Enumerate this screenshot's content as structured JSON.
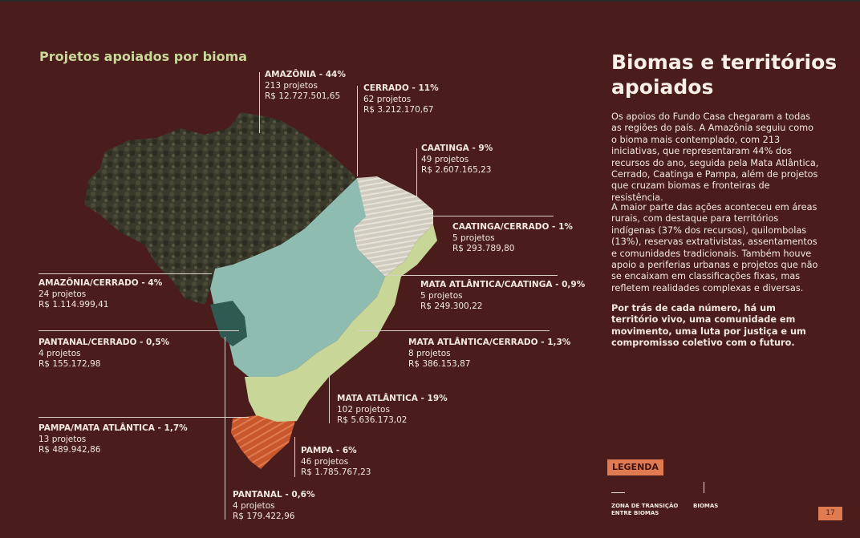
{
  "section_title": "Projetos apoiados por bioma",
  "side": {
    "title_line1": "Biomas e territórios",
    "title_line2": "apoiados",
    "paragraph1": "Os apoios do Fundo Casa chegaram a todas as regiões do país. A Amazônia seguiu como o bioma mais contemplado, com 213 iniciativas, que representaram 44% dos recursos do ano, seguida pela Mata Atlântica, Cerrado, Caatinga e Pampa, além de projetos que cruzam biomas e fronteiras de resistência.",
    "paragraph2": "A maior parte das ações aconteceu em áreas rurais, com destaque para territórios indígenas (37% dos recursos), quilombolas (13%), reservas extrativistas, assentamentos e comunidades tradicionais. Também houve apoio a periferias urbanas e projetos que não se encaixam em classificações fixas, mas refletem realidades complexas e diversas.",
    "paragraph3": "Por trás de cada número, há um território vivo, uma comunidade em movimento, uma luta por justiça e um compromisso coletivo com o futuro."
  },
  "biomes": [
    {
      "title": "AMAZÔNIA - 44%",
      "projects": "213 projetos",
      "amount": "R$ 12.727.501,65"
    },
    {
      "title": "CERRADO - 11%",
      "projects": "62 projetos",
      "amount": "R$ 3.212.170,67"
    },
    {
      "title": "CAATINGA - 9%",
      "projects": "49 projetos",
      "amount": "R$ 2.607.165,23"
    },
    {
      "title": "CAATINGA/CERRADO - 1%",
      "projects": "5 projetos",
      "amount": "R$ 293.789,80"
    },
    {
      "title": "MATA ATLÂNTICA/CAATINGA - 0,9%",
      "projects": "5 projetos",
      "amount": "R$ 249.300,22"
    },
    {
      "title": "MATA ATLÂNTICA/CERRADO - 1,3%",
      "projects": "8 projetos",
      "amount": "R$ 386.153,87"
    },
    {
      "title": "MATA ATLÂNTICA - 19%",
      "projects": "102 projetos",
      "amount": "R$ 5.636.173,02"
    },
    {
      "title": "PAMPA - 6%",
      "projects": "46 projetos",
      "amount": "R$ 1.785.767,23"
    },
    {
      "title": "PANTANAL - 0,6%",
      "projects": "4 projetos",
      "amount": "R$ 179.422,96"
    },
    {
      "title": "AMAZÔNIA/CERRADO - 4%",
      "projects": "24 projetos",
      "amount": "R$ 1.114.999,41"
    },
    {
      "title": "PANTANAL/CERRADO - 0,5%",
      "projects": "4 projetos",
      "amount": "R$ 155.172,98"
    },
    {
      "title": "PAMPA/MATA ATLÂNTICA - 1,7%",
      "projects": "13 projetos",
      "amount": "R$ 489.942,86"
    }
  ],
  "legend": {
    "badge": "LEGENDA",
    "transition_label": "ZONA DE TRANSIÇÃO ENTRE BIOMAS",
    "biomes_label": "BIOMAS"
  },
  "page_number": "17",
  "colors": {
    "background": "#4a1d1c",
    "amazonia": "#3b3a2c",
    "cerrado": "#8fbcb0",
    "caatinga": "#d2cfc4",
    "mata_atlantica": "#c8d698",
    "pampa": "#c8582e",
    "pantanal": "#2f5a52",
    "accent": "#e07a50",
    "title_green": "#c9d79a"
  }
}
